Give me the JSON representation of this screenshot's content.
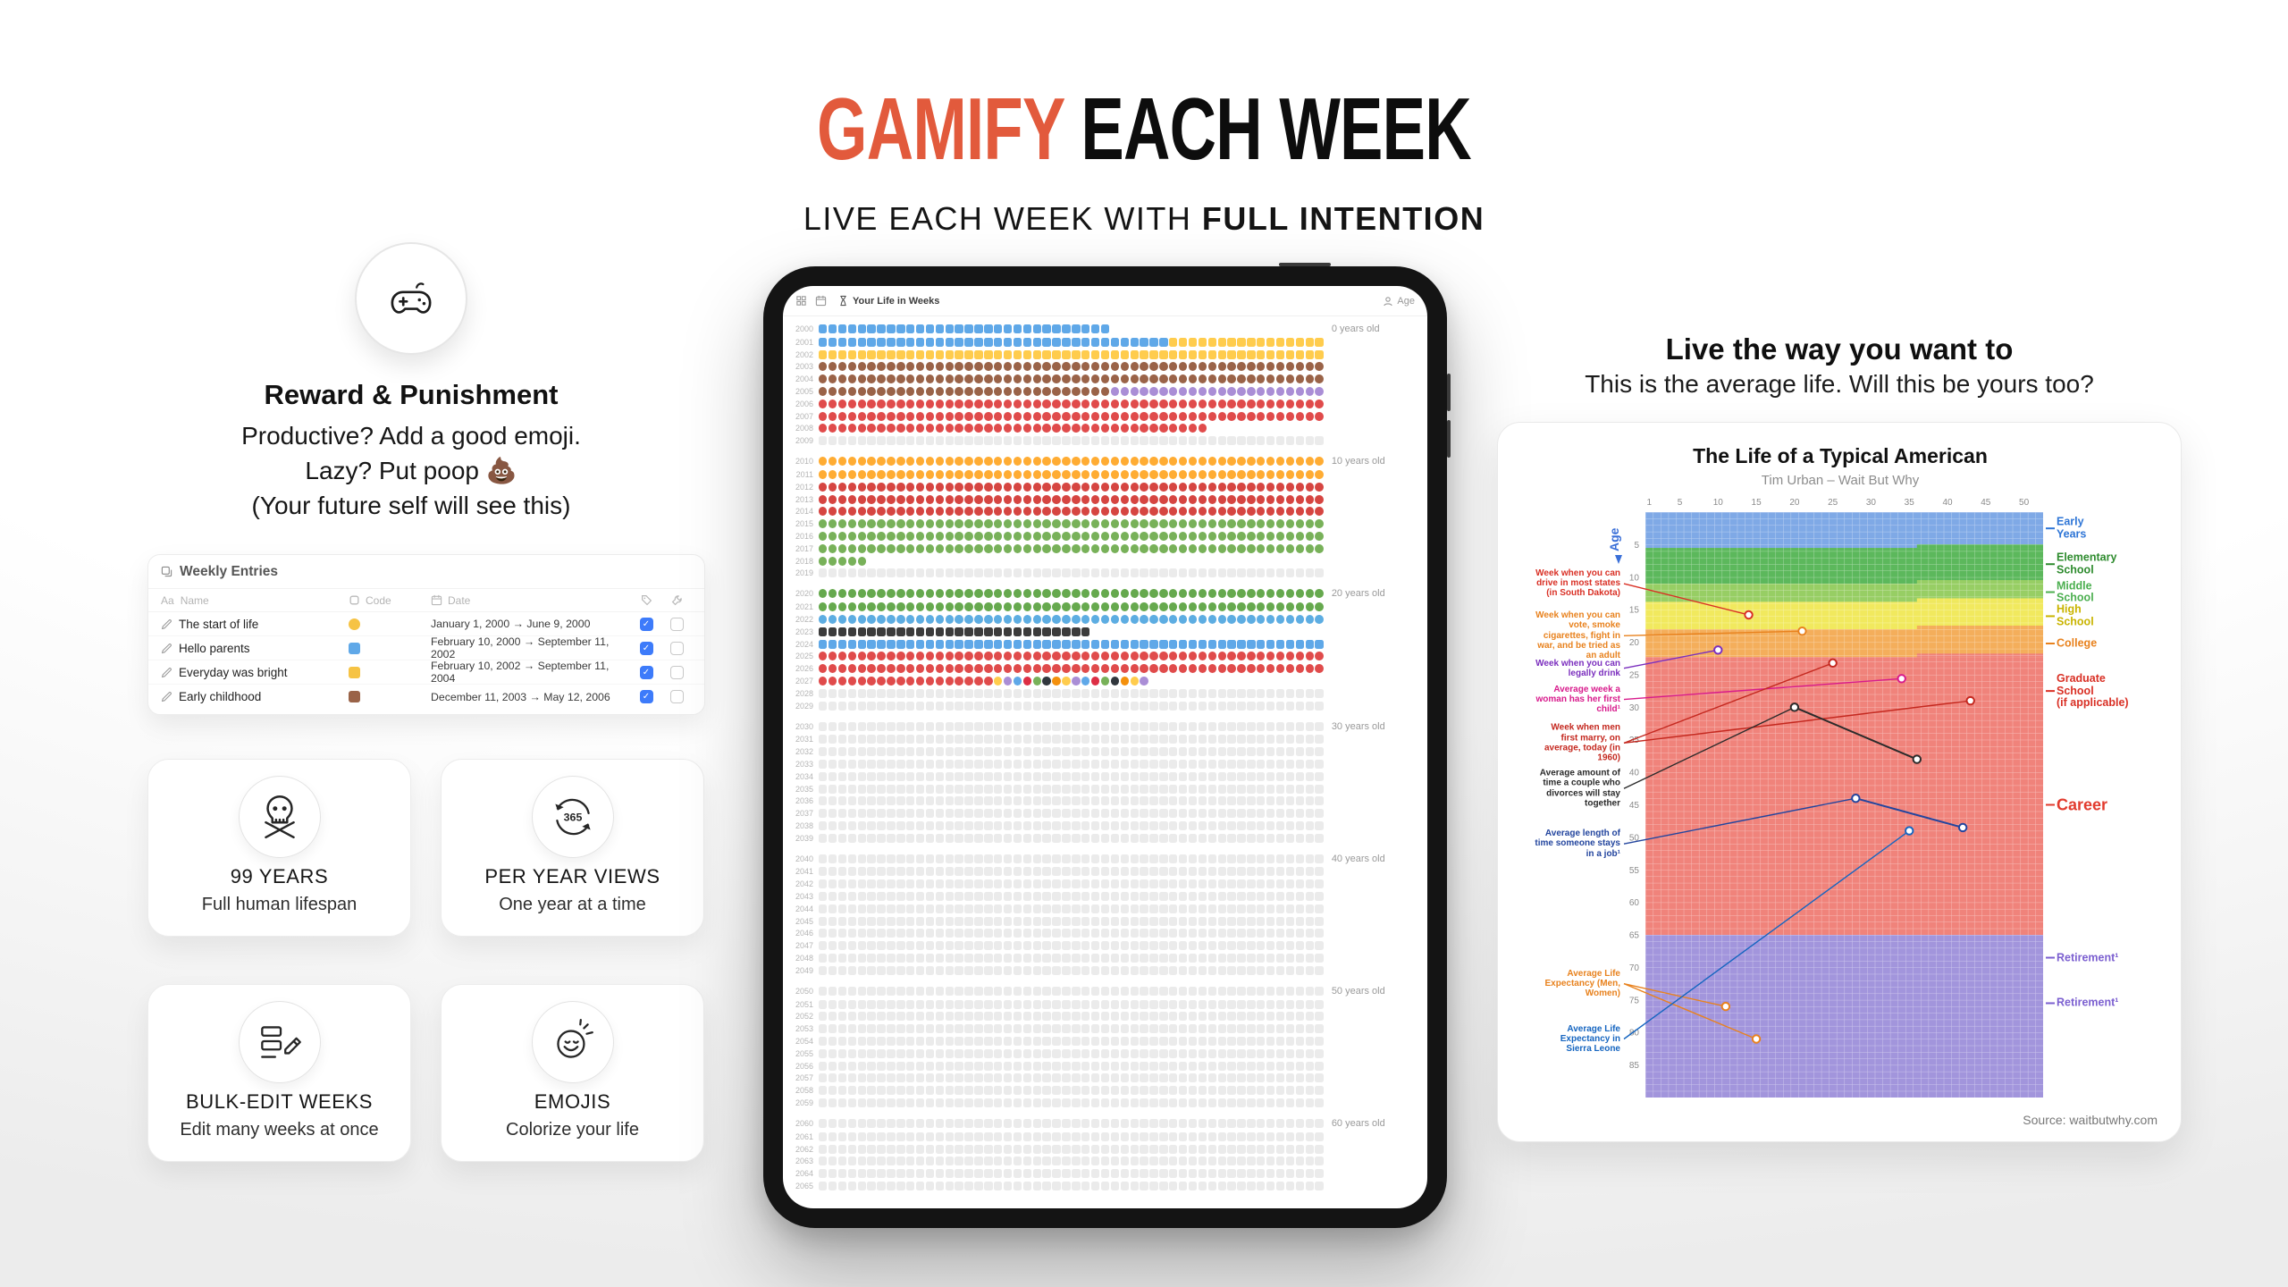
{
  "header": {
    "title_accent": "GAMIFY",
    "title_rest": "EACH WEEK",
    "subtitle_prefix": "LIVE EACH WEEK WITH ",
    "subtitle_bold": "FULL INTENTION",
    "accent_color": "#E25A3C"
  },
  "left": {
    "feature_intro": {
      "icon": "game-controller-icon",
      "title": "Reward & Punishment",
      "lines": [
        "Productive? Add a good emoji.",
        "Lazy? Put poop 💩",
        "(Your future self will see this)"
      ]
    },
    "weekly_entries": {
      "title": "Weekly Entries",
      "columns": {
        "name_prefix": "Aa",
        "name": "Name",
        "code": "Code",
        "date": "Date"
      },
      "rows": [
        {
          "name": "The start of life",
          "code_color": "#F6C344",
          "code_shape": "dot",
          "date": "January 1, 2000 → June 9, 2000",
          "checked": true
        },
        {
          "name": "Hello parents",
          "code_color": "#5FA8E8",
          "code_shape": "square",
          "date": "February 10, 2000 → September 11, 2002",
          "checked": true
        },
        {
          "name": "Everyday was bright",
          "code_color": "#F6C344",
          "code_shape": "square",
          "date": "February 10, 2002 → September 11, 2004",
          "checked": true
        },
        {
          "name": "Early childhood",
          "code_color": "#9A6348",
          "code_shape": "square",
          "date": "December 11, 2003 → May 12, 2006",
          "checked": true
        }
      ]
    },
    "cards": [
      {
        "icon": "skull-icon",
        "title": "99 YEARS",
        "subtitle": "Full human lifespan"
      },
      {
        "icon": "year-cycle-icon",
        "icon_text": "365",
        "title": "PER YEAR VIEWS",
        "subtitle": "One year at a time"
      },
      {
        "icon": "bulk-edit-icon",
        "title": "BULK-EDIT WEEKS",
        "subtitle": "Edit many weeks at once"
      },
      {
        "icon": "smiley-icon",
        "title": "EMOJIS",
        "subtitle": "Colorize your life"
      }
    ]
  },
  "tablet": {
    "toolbar": {
      "title": "Your Life in Weeks",
      "right_label": "Age"
    },
    "years": {
      "start": 2000,
      "end": 2065
    },
    "age_labels": {
      "2000": "0 years old",
      "2010": "10 years old",
      "2020": "20 years old",
      "2030": "30 years old",
      "2040": "40 years old",
      "2050": "50 years old",
      "2060": "60 years old"
    },
    "palette": {
      "blue": {
        "color": "#5FA8E8",
        "shape": "square"
      },
      "yellow": {
        "color": "#FFCC4D",
        "shape": "square"
      },
      "poop": {
        "color": "#9A6348",
        "shape": "round"
      },
      "heart": {
        "color": "#E04B4B",
        "shape": "round"
      },
      "lavender": {
        "color": "#AA8ED6",
        "shape": "round"
      },
      "star": {
        "color": "#FFAC33",
        "shape": "round"
      },
      "apple": {
        "color": "#D64541",
        "shape": "round"
      },
      "clover": {
        "color": "#78B159",
        "shape": "round"
      },
      "seedling": {
        "color": "#66A94E",
        "shape": "round"
      },
      "fish": {
        "color": "#5DADE2",
        "shape": "round"
      },
      "dark": {
        "color": "#3B3B3B",
        "shape": "square"
      },
      "empty": {
        "color": "#EBEBEB",
        "shape": "square"
      },
      "none": {
        "color": "transparent",
        "shape": "square"
      }
    },
    "mixed_colors": [
      "#FFCC4D",
      "#AA8ED6",
      "#5FA8E8",
      "#DD2E44",
      "#78B159",
      "#31373D",
      "#F4900C"
    ],
    "week_rows": {
      "2000": [
        [
          "blue",
          30
        ],
        [
          "none",
          22
        ]
      ],
      "2001": [
        [
          "blue",
          36
        ],
        [
          "yellow",
          16
        ]
      ],
      "2002": [
        [
          "yellow",
          52
        ]
      ],
      "2003": [
        [
          "poop",
          52
        ]
      ],
      "2004": [
        [
          "poop",
          52
        ]
      ],
      "2005": [
        [
          "poop",
          30
        ],
        [
          "lavender",
          22
        ]
      ],
      "2006": [
        [
          "heart",
          52
        ]
      ],
      "2007": [
        [
          "heart",
          52
        ]
      ],
      "2008": [
        [
          "heart",
          40
        ],
        [
          "none",
          12
        ]
      ],
      "2010": [
        [
          "star",
          52
        ]
      ],
      "2011": [
        [
          "star",
          52
        ]
      ],
      "2012": [
        [
          "apple",
          52
        ]
      ],
      "2013": [
        [
          "apple",
          52
        ]
      ],
      "2014": [
        [
          "apple",
          52
        ]
      ],
      "2015": [
        [
          "clover",
          52
        ]
      ],
      "2016": [
        [
          "clover",
          52
        ]
      ],
      "2017": [
        [
          "clover",
          52
        ]
      ],
      "2018": [
        [
          "clover",
          5
        ],
        [
          "none",
          47
        ]
      ],
      "2020": [
        [
          "seedling",
          52
        ]
      ],
      "2021": [
        [
          "seedling",
          52
        ]
      ],
      "2022": [
        [
          "fish",
          52
        ]
      ],
      "2023": [
        [
          "dark",
          28
        ],
        [
          "none",
          24
        ]
      ],
      "2024": [
        [
          "blue",
          52
        ]
      ],
      "2025": [
        [
          "heart",
          52
        ]
      ],
      "2026": [
        [
          "heart",
          52
        ]
      ],
      "2027": [
        [
          "heart",
          18
        ],
        [
          "mixed",
          16
        ],
        [
          "none",
          18
        ]
      ]
    }
  },
  "right": {
    "heading": "Live the way you want to",
    "subheading": "This is the average life. Will this be yours too?"
  },
  "chart_data": {
    "type": "heatmap",
    "title": "The Life of a Typical American",
    "subtitle": "Tim Urban – Wait But Why",
    "source": "Source: waitbutwhy.com",
    "ylabel": "Age",
    "x_range": [
      1,
      52
    ],
    "y_range": [
      0,
      90
    ],
    "x_ticks": [
      1,
      5,
      10,
      15,
      20,
      25,
      30,
      35,
      40,
      45,
      50
    ],
    "y_ticks": [
      5,
      10,
      15,
      20,
      25,
      30,
      35,
      40,
      45,
      50,
      55,
      60,
      65,
      70,
      75,
      80,
      85
    ],
    "grid": true,
    "legend_position": "right",
    "bands": [
      {
        "label": "Early Years",
        "from": 0,
        "to": 5.5,
        "color": "#7FA9E6"
      },
      {
        "label": "Elementary School",
        "from": 5.5,
        "to": 11,
        "color": "#5CB85C"
      },
      {
        "label": "Middle School",
        "from": 11,
        "to": 13.8,
        "color": "#97CE64"
      },
      {
        "label": "High School",
        "from": 13.8,
        "to": 18,
        "color": "#F1E95E"
      },
      {
        "label": "College",
        "from": 18,
        "to": 22.3,
        "color": "#F4AE5B"
      },
      {
        "label": "Graduate School / Career",
        "from": 22.3,
        "to": 65,
        "color": "#F0837B"
      },
      {
        "label": "Retirement",
        "from": 65,
        "to": 90,
        "color": "#A295DC"
      }
    ],
    "band_steps": [
      {
        "age": 5.5,
        "week": 36,
        "color": "#5CB85C"
      },
      {
        "age": 11,
        "week": 36,
        "color": "#97CE64"
      },
      {
        "age": 13.8,
        "week": 36,
        "color": "#F1E95E"
      },
      {
        "age": 18,
        "week": 36,
        "color": "#F4AE5B"
      },
      {
        "age": 22.3,
        "week": 36,
        "color": "#F0837B"
      }
    ],
    "right_labels": [
      {
        "text": "Early\nYears",
        "color": "#2E75D6",
        "age": 2.5
      },
      {
        "text": "Elementary\nSchool",
        "color": "#2E8B2E",
        "age": 8
      },
      {
        "text": "Middle\nSchool",
        "color": "#4CAF50",
        "age": 12.3
      },
      {
        "text": "High\nSchool",
        "color": "#C9B400",
        "age": 16
      },
      {
        "text": "College",
        "color": "#E8821E",
        "age": 20.2
      },
      {
        "text": "Graduate\nSchool\n(if applicable)",
        "color": "#D93025",
        "age": 27.5
      },
      {
        "text": "Career",
        "color": "#E23B2E",
        "age": 45,
        "big": true
      },
      {
        "text": "Retirement¹",
        "color": "#7B5FD0",
        "age": 68.5
      },
      {
        "text": "Retirement¹",
        "color": "#7B5FD0",
        "age": 75.5
      }
    ],
    "annotations": [
      {
        "text": "Week when you can drive in most states (in South Dakota)",
        "color": "#D93025",
        "label_age": 11,
        "dot": [
          14,
          15.8
        ]
      },
      {
        "text": "Week when you can vote, smoke cigarettes, fight in war, and be tried as an adult",
        "color": "#E8821E",
        "label_age": 19,
        "dot": [
          21,
          18.3
        ]
      },
      {
        "text": "Week when you can legally drink",
        "color": "#7B2FBE",
        "label_age": 24,
        "dot": [
          10,
          21.2
        ]
      },
      {
        "text": "Average week a woman has her first child¹",
        "color": "#D81B8C",
        "label_age": 28.8,
        "dot": [
          34,
          25.6
        ]
      },
      {
        "text": "Week when men first marry, on average, today (in 1960)",
        "color": "#C4281F",
        "label_age": 35.5,
        "dots": [
          [
            43,
            29
          ],
          [
            25,
            23.2
          ]
        ]
      },
      {
        "text": "Average amount of time a couple who divorces will stay together",
        "color": "#2b2b2b",
        "label_age": 42.5,
        "segment": [
          [
            20,
            30
          ],
          [
            36,
            38
          ]
        ]
      },
      {
        "text": "Average length of time someone stays in a job¹",
        "color": "#23459E",
        "label_age": 51,
        "segment": [
          [
            28,
            44
          ],
          [
            42,
            48.5
          ]
        ]
      },
      {
        "text": "Average Life Expectancy (Men, Women)",
        "color": "#E8821E",
        "label_age": 72.5,
        "dots": [
          [
            11,
            76
          ],
          [
            15,
            81
          ]
        ]
      },
      {
        "text": "Average Life Expectancy in Sierra Leone",
        "color": "#1565C0",
        "label_age": 81,
        "dot": [
          35,
          49
        ]
      }
    ]
  }
}
